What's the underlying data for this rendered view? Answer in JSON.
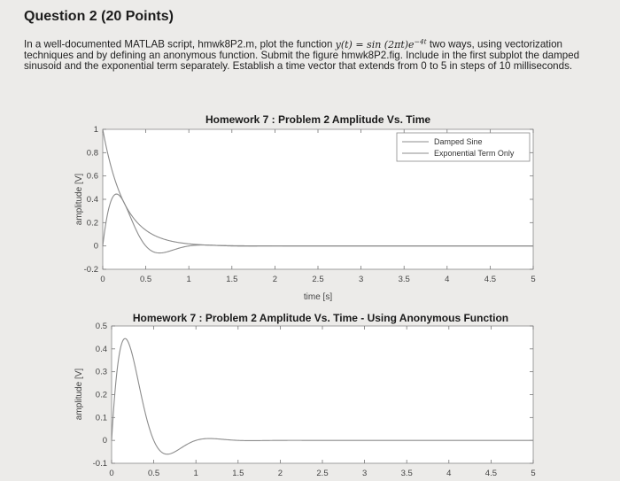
{
  "question": {
    "title": "Question 2 (20 Points)",
    "text_part1": "In a well-documented MATLAB script, hmwk8P2.m, plot the function ",
    "math_lhs": "y(t) = sin (2πt)e",
    "math_exp": "−4t",
    "text_part2": " two ways, using vectorization techniques and by defining an anonymous function.  Submit the figure hmwk8P2.fig.  Include in the first subplot the damped sinusoid and the exponential term separately.  Establish a time vector that extends from 0 to 5 in steps of 10 milliseconds."
  },
  "chart_data": [
    {
      "type": "line",
      "title": "Homework 7 : Problem 2 Amplitude Vs. Time",
      "xlabel": "time [s]",
      "ylabel": "amplitude [V]",
      "xlim": [
        0,
        5
      ],
      "ylim": [
        -0.2,
        1
      ],
      "xticks": [
        "0",
        "0.5",
        "1",
        "1.5",
        "2",
        "2.5",
        "3",
        "3.5",
        "4",
        "4.5",
        "5"
      ],
      "yticks": [
        "-0.2",
        "0",
        "0.2",
        "0.4",
        "0.6",
        "0.8",
        "1"
      ],
      "legend_position": "top-right",
      "grid": false,
      "series": [
        {
          "name": "Damped Sine",
          "function": "sin(2*pi*t)*exp(-4*t)",
          "t_start": 0,
          "t_end": 5,
          "t_step": 0.01
        },
        {
          "name": "Exponential Term Only",
          "function": "exp(-4*t)",
          "t_start": 0,
          "t_end": 5,
          "t_step": 0.01
        }
      ]
    },
    {
      "type": "line",
      "title": "Homework 7 : Problem 2 Amplitude Vs. Time - Using Anonymous Function",
      "xlabel": "",
      "ylabel": "amplitude [V]",
      "xlim": [
        0,
        5
      ],
      "ylim": [
        -0.1,
        0.5
      ],
      "xticks": [
        "0",
        "0.5",
        "1",
        "1.5",
        "2",
        "2.5",
        "3",
        "3.5",
        "4",
        "4.5",
        "5"
      ],
      "yticks": [
        "-0.1",
        "0",
        "0.1",
        "0.2",
        "0.3",
        "0.4",
        "0.5"
      ],
      "grid": false,
      "series": [
        {
          "function": "sin(2*pi*t)*exp(-4*t)",
          "t_start": 0,
          "t_end": 5,
          "t_step": 0.01
        }
      ]
    }
  ],
  "colors": {
    "page_bg": "#ecebe9",
    "axes_bg": "#ffffff",
    "line_color": "#8c8c8c",
    "axis_color": "#777777"
  }
}
